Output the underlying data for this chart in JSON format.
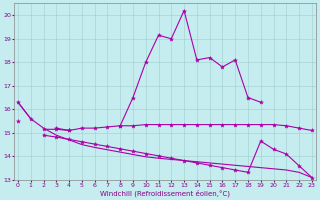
{
  "xlabel": "Windchill (Refroidissement éolien,°C)",
  "background_color": "#c5ecee",
  "grid_color": "#9ecece",
  "line_color": "#aa00aa",
  "x_values": [
    0,
    1,
    2,
    3,
    4,
    5,
    6,
    7,
    8,
    9,
    10,
    11,
    12,
    13,
    14,
    15,
    16,
    17,
    18,
    19,
    20,
    21,
    22,
    23
  ],
  "line1_y": [
    16.3,
    15.6,
    null,
    15.2,
    15.1,
    null,
    null,
    null,
    15.3,
    16.5,
    18.0,
    19.15,
    19.0,
    20.2,
    18.1,
    18.2,
    17.8,
    18.1,
    16.5,
    16.3,
    null,
    null,
    null,
    null
  ],
  "line2_y": [
    15.5,
    null,
    15.15,
    15.15,
    15.1,
    15.2,
    15.2,
    15.25,
    15.3,
    15.3,
    15.35,
    15.35,
    15.35,
    15.35,
    15.35,
    15.35,
    15.35,
    15.35,
    15.35,
    15.35,
    15.35,
    15.3,
    15.2,
    15.1
  ],
  "line3_y": [
    null,
    null,
    14.9,
    14.82,
    14.72,
    14.62,
    14.52,
    14.42,
    14.32,
    14.22,
    14.12,
    14.02,
    13.92,
    13.82,
    13.72,
    13.62,
    13.52,
    13.42,
    13.32,
    14.65,
    14.3,
    14.1,
    13.6,
    13.1
  ],
  "line4_y": [
    16.3,
    15.6,
    15.2,
    14.9,
    14.7,
    14.5,
    14.38,
    14.28,
    14.18,
    14.08,
    13.98,
    13.92,
    13.87,
    13.82,
    13.77,
    13.72,
    13.67,
    13.62,
    13.57,
    13.52,
    13.47,
    13.42,
    13.32,
    13.1
  ],
  "ylim": [
    13.0,
    20.5
  ],
  "xlim": [
    -0.3,
    23.3
  ],
  "yticks": [
    13,
    14,
    15,
    16,
    17,
    18,
    19,
    20
  ],
  "xticks": [
    0,
    1,
    2,
    3,
    4,
    5,
    6,
    7,
    8,
    9,
    10,
    11,
    12,
    13,
    14,
    15,
    16,
    17,
    18,
    19,
    20,
    21,
    22,
    23
  ]
}
